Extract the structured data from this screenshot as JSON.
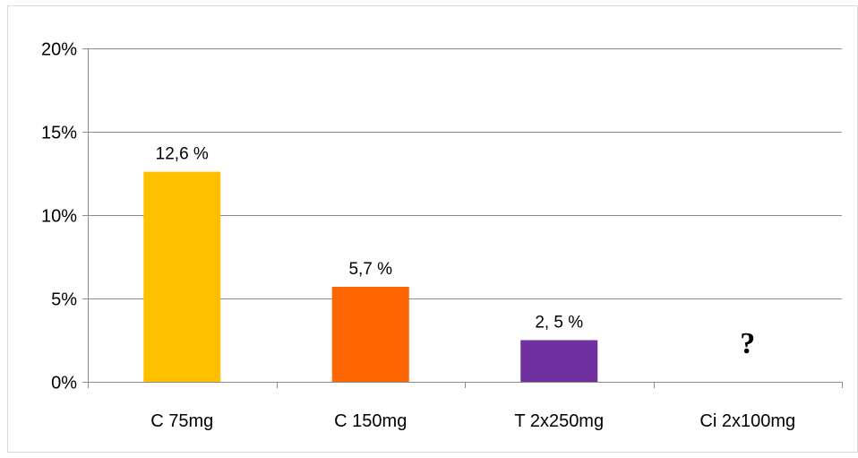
{
  "chart_data": {
    "type": "bar",
    "title": "",
    "xlabel": "",
    "ylabel": "",
    "ylim": [
      0,
      20
    ],
    "y_ticks": [
      {
        "value": 0,
        "label": "0%"
      },
      {
        "value": 5,
        "label": "5%"
      },
      {
        "value": 10,
        "label": "10%"
      },
      {
        "value": 15,
        "label": "15%"
      },
      {
        "value": 20,
        "label": "20%"
      }
    ],
    "grid": true,
    "legend": "none",
    "categories": [
      "C 75mg",
      "C 150mg",
      "T 2x250mg",
      "Ci 2x100mg"
    ],
    "values": [
      12.6,
      5.7,
      2.5,
      null
    ],
    "data_labels": [
      "12,6 %",
      "5,7 %",
      "2, 5 %",
      "?"
    ],
    "colors": [
      "#FFC000",
      "#FF6600",
      "#7030A0",
      "#000000"
    ]
  }
}
